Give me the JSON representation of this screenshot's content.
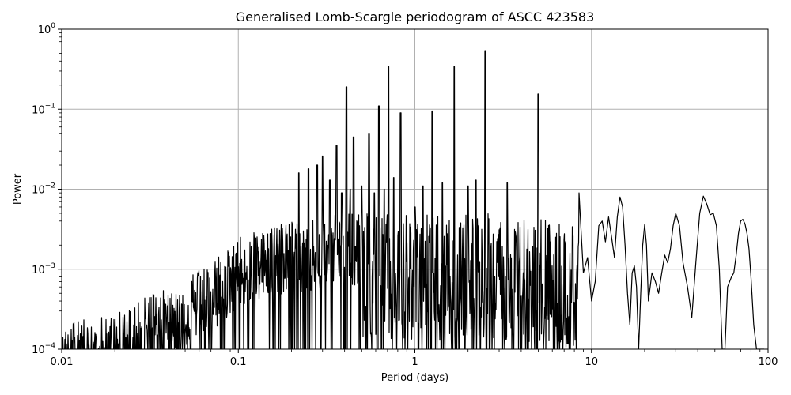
{
  "chart_data": {
    "type": "line",
    "title": "Generalised Lomb-Scargle periodogram of ASCC 423583",
    "xlabel": "Period (days)",
    "ylabel": "Power",
    "xscale": "log",
    "yscale": "log",
    "xlim": [
      0.01,
      100
    ],
    "ylim": [
      0.0001,
      1
    ],
    "grid": true,
    "legend": null,
    "x_ticks": [
      {
        "value": 0.01,
        "label": "0.01"
      },
      {
        "value": 0.1,
        "label": "0.1"
      },
      {
        "value": 1,
        "label": "1"
      },
      {
        "value": 10,
        "label": "10"
      },
      {
        "value": 100,
        "label": "100"
      }
    ],
    "y_ticks": [
      {
        "value": 1,
        "base": "10",
        "exp": "0"
      },
      {
        "value": 0.1,
        "base": "10",
        "exp": "−1"
      },
      {
        "value": 0.01,
        "base": "10",
        "exp": "−2"
      },
      {
        "value": 0.001,
        "base": "10",
        "exp": "−3"
      },
      {
        "value": 0.0001,
        "base": "10",
        "exp": "−4"
      }
    ],
    "line_color": "#000000",
    "grid_color": "#b0b0b0",
    "noise_envelope": {
      "description": "Dense forest of aliased peaks; upper envelope of the noise floor",
      "x": [
        0.01,
        0.02,
        0.04,
        0.07,
        0.1,
        0.2,
        0.4,
        1.0,
        3.0,
        8.0
      ],
      "y": [
        0.0002,
        0.0003,
        0.0006,
        0.0012,
        0.0025,
        0.004,
        0.005,
        0.005,
        0.005,
        0.004
      ]
    },
    "peaks": [
      {
        "period": 0.22,
        "power": 0.016
      },
      {
        "period": 0.25,
        "power": 0.018
      },
      {
        "period": 0.28,
        "power": 0.02
      },
      {
        "period": 0.3,
        "power": 0.026
      },
      {
        "period": 0.33,
        "power": 0.013
      },
      {
        "period": 0.36,
        "power": 0.035
      },
      {
        "period": 0.385,
        "power": 0.009
      },
      {
        "period": 0.41,
        "power": 0.19
      },
      {
        "period": 0.43,
        "power": 0.01
      },
      {
        "period": 0.45,
        "power": 0.045
      },
      {
        "period": 0.5,
        "power": 0.011
      },
      {
        "period": 0.55,
        "power": 0.05
      },
      {
        "period": 0.59,
        "power": 0.009
      },
      {
        "period": 0.625,
        "power": 0.11
      },
      {
        "period": 0.67,
        "power": 0.01
      },
      {
        "period": 0.71,
        "power": 0.34
      },
      {
        "period": 0.76,
        "power": 0.014
      },
      {
        "period": 0.83,
        "power": 0.09
      },
      {
        "period": 1.0,
        "power": 0.006
      },
      {
        "period": 1.11,
        "power": 0.011
      },
      {
        "period": 1.25,
        "power": 0.095
      },
      {
        "period": 1.43,
        "power": 0.012
      },
      {
        "period": 1.67,
        "power": 0.34
      },
      {
        "period": 2.0,
        "power": 0.011
      },
      {
        "period": 2.22,
        "power": 0.013
      },
      {
        "period": 2.5,
        "power": 0.54
      },
      {
        "period": 3.33,
        "power": 0.012
      },
      {
        "period": 5.0,
        "power": 0.155
      }
    ],
    "long_period_curve": {
      "x": [
        8.5,
        9.0,
        9.5,
        10.0,
        10.5,
        11.0,
        11.5,
        12.0,
        12.5,
        13.0,
        13.5,
        14.0,
        14.5,
        15.0,
        15.5,
        16.0,
        16.5,
        17.0,
        17.5,
        18.0,
        18.5,
        19.0,
        19.5,
        20.0,
        20.5,
        21.0,
        22.0,
        23.0,
        24.0,
        25.0,
        26.0,
        27.0,
        28.0,
        29.0,
        30.0,
        31.5,
        33.0,
        35.0,
        37.0,
        39.0,
        41.0,
        43.0,
        45.0,
        47.0,
        49.0,
        51.0,
        53.0,
        55.0,
        57.0,
        59.0,
        62.0,
        64.0,
        66.0,
        68.0,
        70.0,
        72.0,
        74.0,
        76.0,
        78.0,
        80.0,
        83.0,
        86.0,
        89.0,
        92.0,
        95.0
      ],
      "y": [
        0.009,
        0.0009,
        0.0014,
        0.0004,
        0.0007,
        0.0035,
        0.004,
        0.0022,
        0.0045,
        0.0025,
        0.0014,
        0.0045,
        0.008,
        0.006,
        0.002,
        0.0005,
        0.0002,
        0.0009,
        0.0011,
        0.0006,
        0.0001,
        0.0005,
        0.002,
        0.0036,
        0.002,
        0.0004,
        0.0009,
        0.0007,
        0.0005,
        0.0009,
        0.0015,
        0.0012,
        0.0018,
        0.0035,
        0.005,
        0.0035,
        0.0012,
        0.0006,
        0.00025,
        0.0012,
        0.005,
        0.0082,
        0.0065,
        0.0048,
        0.005,
        0.0035,
        0.001,
        0.0001,
        0.0001,
        0.0006,
        0.0008,
        0.0009,
        0.0015,
        0.0028,
        0.004,
        0.0042,
        0.0037,
        0.0028,
        0.0018,
        0.0008,
        0.0002,
        0.0001,
        0.0001,
        0.0001,
        0.0001
      ]
    }
  }
}
